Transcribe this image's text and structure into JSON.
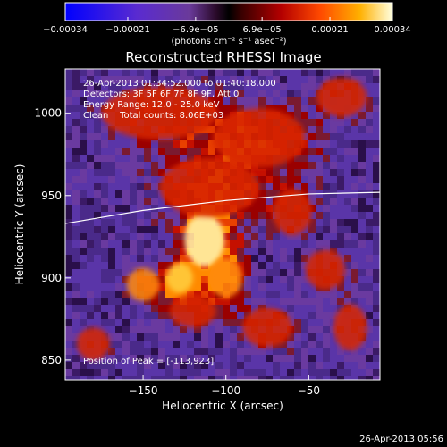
{
  "chart_data": {
    "type": "heatmap",
    "title": "Reconstructed RHESSI Image",
    "xlabel": "Heliocentric X (arcsec)",
    "ylabel": "Heliocentric Y (arcsec)",
    "xlim": [
      -197,
      -7
    ],
    "ylim": [
      838,
      1027
    ],
    "xticks": [
      {
        "value": -150,
        "label": "−150"
      },
      {
        "value": -100,
        "label": "−100"
      },
      {
        "value": -50,
        "label": "−50"
      }
    ],
    "yticks": [
      {
        "value": 850,
        "label": "850"
      },
      {
        "value": 900,
        "label": "900"
      },
      {
        "value": 950,
        "label": "950"
      },
      {
        "value": 1000,
        "label": "1000"
      }
    ],
    "colorbar": {
      "colormap": "hot-with-blue-negative",
      "range": [
        -0.00034,
        0.00034
      ],
      "ticks": [
        {
          "value": -0.00034,
          "label": "−0.00034"
        },
        {
          "value": -0.00021,
          "label": "−0.00021"
        },
        {
          "value": -6.9e-05,
          "label": "−6.9e−05"
        },
        {
          "value": 6.9e-05,
          "label": "6.9e−05"
        },
        {
          "value": 0.00021,
          "label": "0.00021"
        },
        {
          "value": 0.00034,
          "label": "0.00034"
        }
      ],
      "unit_label": "(photons cm⁻² s⁻¹ asec⁻²)"
    },
    "info_lines": [
      "26-Apr-2013 01:34:52.000 to 01:40:18.000",
      "Detectors: 3F 5F 6F 7F 8F 9F, Att 0",
      "Energy Range: 12.0 - 25.0 keV",
      "Clean    Total counts: 8.06E+03"
    ],
    "peak_label": "Position of Peak = [-113,923]",
    "peak_position": [
      -113,
      923
    ],
    "limb_curve": [
      [
        -197,
        933
      ],
      [
        -150,
        941
      ],
      [
        -100,
        947
      ],
      [
        -50,
        951
      ],
      [
        -7,
        952
      ]
    ],
    "emission_blobs": [
      {
        "x": -113,
        "y": 923,
        "rx": 12,
        "ry": 16,
        "intensity": 1.0
      },
      {
        "x": -128,
        "y": 900,
        "rx": 8,
        "ry": 9,
        "intensity": 0.85
      },
      {
        "x": -150,
        "y": 896,
        "rx": 10,
        "ry": 10,
        "intensity": 0.6
      },
      {
        "x": -100,
        "y": 900,
        "rx": 10,
        "ry": 12,
        "intensity": 0.6
      },
      {
        "x": -120,
        "y": 880,
        "rx": 14,
        "ry": 10,
        "intensity": 0.45
      },
      {
        "x": -110,
        "y": 955,
        "rx": 30,
        "ry": 18,
        "intensity": 0.5
      },
      {
        "x": -80,
        "y": 985,
        "rx": 28,
        "ry": 18,
        "intensity": 0.55
      },
      {
        "x": -140,
        "y": 1000,
        "rx": 35,
        "ry": 16,
        "intensity": 0.5
      },
      {
        "x": -60,
        "y": 940,
        "rx": 12,
        "ry": 14,
        "intensity": 0.35
      },
      {
        "x": -40,
        "y": 905,
        "rx": 12,
        "ry": 12,
        "intensity": 0.4
      },
      {
        "x": -75,
        "y": 870,
        "rx": 15,
        "ry": 12,
        "intensity": 0.45
      },
      {
        "x": -25,
        "y": 870,
        "rx": 10,
        "ry": 14,
        "intensity": 0.35
      },
      {
        "x": -180,
        "y": 860,
        "rx": 10,
        "ry": 10,
        "intensity": 0.3
      },
      {
        "x": -30,
        "y": 1010,
        "rx": 15,
        "ry": 12,
        "intensity": 0.35
      }
    ]
  },
  "footer_timestamp": "26-Apr-2013 05:56"
}
